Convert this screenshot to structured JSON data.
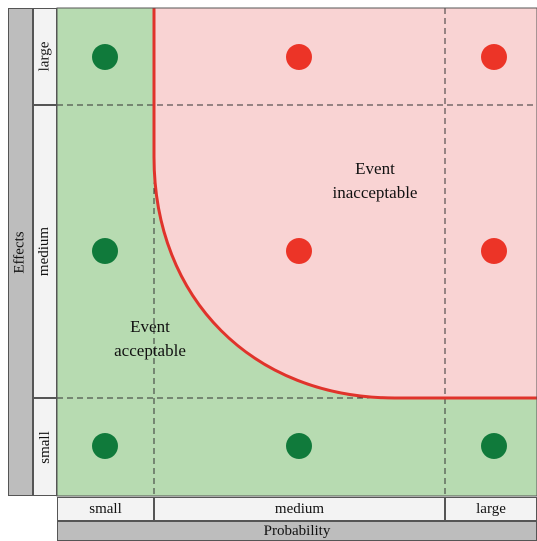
{
  "axes": {
    "y_title": "Effects",
    "x_title": "Probability",
    "y_levels": [
      "small",
      "medium",
      "large"
    ],
    "x_levels": [
      "small",
      "medium",
      "large"
    ]
  },
  "regions": {
    "acceptable_label": [
      "Event",
      "acceptable"
    ],
    "inacceptable_label": [
      "Event",
      "inacceptable"
    ]
  },
  "colors": {
    "acceptable_fill": "#b7dbb1",
    "inacceptable_fill": "#f9d3d3",
    "boundary": "#e0332b",
    "dot_acceptable": "#107a3b",
    "dot_inacceptable": "#ec3427",
    "grid_line": "#333333"
  },
  "cells": [
    {
      "probability": "small",
      "effects": "large",
      "status": "acceptable"
    },
    {
      "probability": "medium",
      "effects": "large",
      "status": "inacceptable"
    },
    {
      "probability": "large",
      "effects": "large",
      "status": "inacceptable"
    },
    {
      "probability": "small",
      "effects": "medium",
      "status": "acceptable"
    },
    {
      "probability": "medium",
      "effects": "medium",
      "status": "inacceptable"
    },
    {
      "probability": "large",
      "effects": "medium",
      "status": "inacceptable"
    },
    {
      "probability": "small",
      "effects": "small",
      "status": "acceptable"
    },
    {
      "probability": "medium",
      "effects": "small",
      "status": "acceptable"
    },
    {
      "probability": "large",
      "effects": "small",
      "status": "acceptable"
    }
  ]
}
